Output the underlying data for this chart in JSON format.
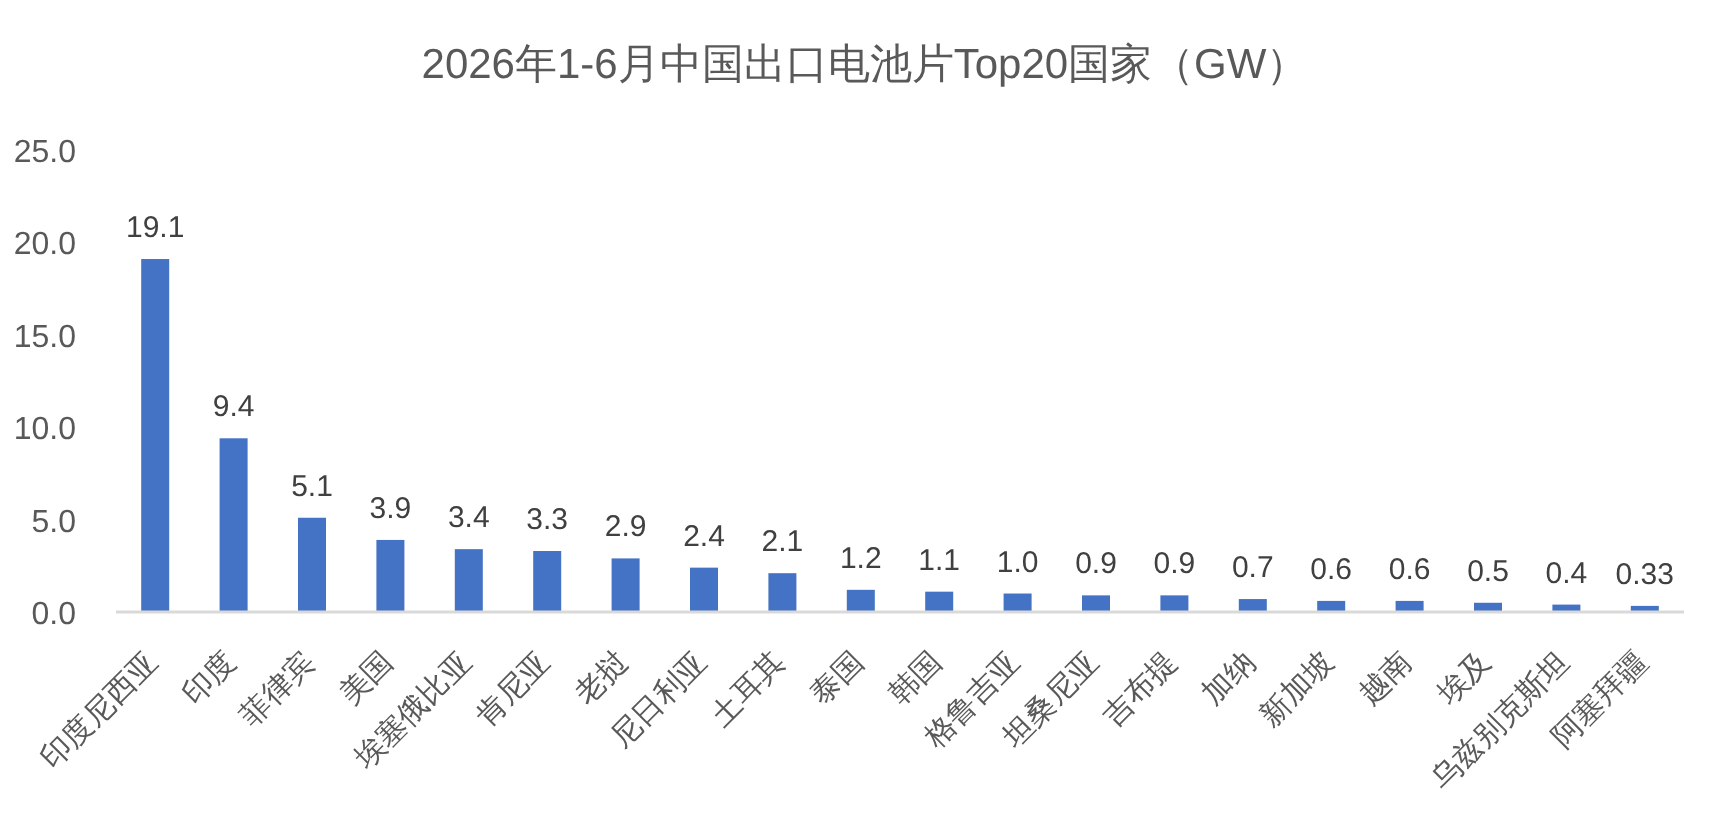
{
  "chart_data": {
    "type": "bar",
    "title": "2026年1-6月中国出口电池片Top20国家（GW）",
    "categories": [
      "印度尼西亚",
      "印度",
      "菲律宾",
      "美国",
      "埃塞俄比亚",
      "肯尼亚",
      "老挝",
      "尼日利亚",
      "土耳其",
      "泰国",
      "韩国",
      "格鲁吉亚",
      "坦桑尼亚",
      "吉布提",
      "加纳",
      "新加坡",
      "越南",
      "埃及",
      "乌兹别克斯坦",
      "阿塞拜疆"
    ],
    "values": [
      19.1,
      9.4,
      5.1,
      3.9,
      3.4,
      3.3,
      2.9,
      2.4,
      2.1,
      1.2,
      1.1,
      1.0,
      0.9,
      0.9,
      0.7,
      0.6,
      0.6,
      0.5,
      0.4,
      0.33
    ],
    "value_labels": [
      "19.1",
      "9.4",
      "5.1",
      "3.9",
      "3.4",
      "3.3",
      "2.9",
      "2.4",
      "2.1",
      "1.2",
      "1.1",
      "1.0",
      "0.9",
      "0.9",
      "0.7",
      "0.6",
      "0.6",
      "0.5",
      "0.4",
      "0.33"
    ],
    "color": "#4472c4",
    "ylim": [
      0,
      25
    ],
    "yticks": [
      {
        "value": 0,
        "label": "0.0"
      },
      {
        "value": 5,
        "label": "5.0"
      },
      {
        "value": 10,
        "label": "10.0"
      },
      {
        "value": 15,
        "label": "15.0"
      },
      {
        "value": 20,
        "label": "20.0"
      },
      {
        "value": 25,
        "label": "25.0"
      }
    ]
  }
}
